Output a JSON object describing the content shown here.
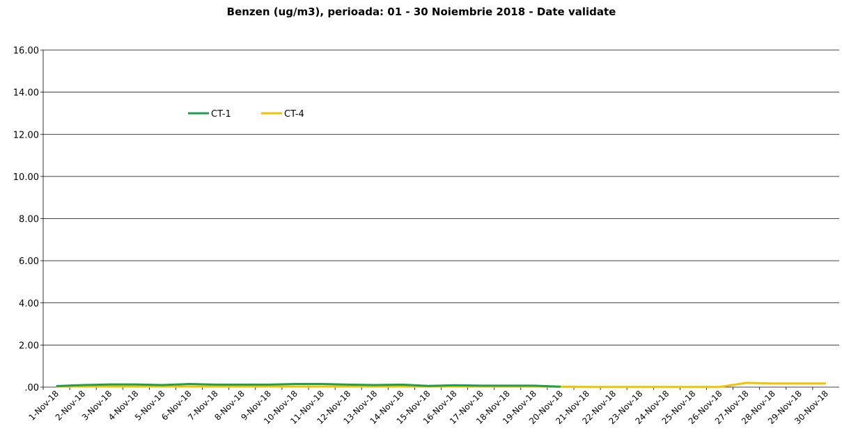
{
  "chart_data": {
    "type": "line",
    "title": "Benzen (ug/m3), perioada: 01 - 30 Noiembrie 2018 - Date validate",
    "categories": [
      "1-Nov-18",
      "2-Nov-18",
      "3-Nov-18",
      "4-Nov-18",
      "5-Nov-18",
      "6-Nov-18",
      "7-Nov-18",
      "8-Nov-18",
      "9-Nov-18",
      "10-Nov-18",
      "11-Nov-18",
      "12-Nov-18",
      "13-Nov-18",
      "14-Nov-18",
      "15-Nov-18",
      "16-Nov-18",
      "17-Nov-18",
      "18-Nov-18",
      "19-Nov-18",
      "20-Nov-18",
      "21-Nov-18",
      "22-Nov-18",
      "23-Nov-18",
      "24-Nov-18",
      "25-Nov-18",
      "26-Nov-18",
      "27-Nov-18",
      "28-Nov-18",
      "29-Nov-18",
      "30-Nov-18"
    ],
    "series": [
      {
        "name": "CT-1",
        "color": "#1ea04a",
        "values": [
          0.05,
          0.1,
          0.13,
          0.13,
          0.1,
          0.15,
          0.12,
          0.12,
          0.12,
          0.15,
          0.15,
          0.12,
          0.1,
          0.12,
          0.06,
          0.09,
          0.07,
          0.07,
          0.07,
          0.02,
          null,
          null,
          null,
          null,
          null,
          null,
          null,
          null,
          null,
          null
        ]
      },
      {
        "name": "CT-4",
        "color": "#f2c200",
        "values": [
          0.03,
          0.03,
          0.03,
          0.03,
          0.03,
          0.03,
          0.03,
          0.03,
          0.03,
          0.03,
          0.03,
          0.03,
          0.03,
          0.03,
          0.03,
          0.03,
          0.03,
          0.03,
          0.03,
          0.02,
          0.01,
          0.01,
          0.01,
          0.01,
          0.01,
          0.01,
          0.2,
          0.17,
          0.17,
          0.17
        ]
      }
    ],
    "ylim": [
      0,
      16
    ],
    "yticks": [
      {
        "value": 0,
        "label": ".00"
      },
      {
        "value": 2,
        "label": "2.00"
      },
      {
        "value": 4,
        "label": "4.00"
      },
      {
        "value": 6,
        "label": "6.00"
      },
      {
        "value": 8,
        "label": "8.00"
      },
      {
        "value": 10,
        "label": "10.00"
      },
      {
        "value": 12,
        "label": "12.00"
      },
      {
        "value": 14,
        "label": "14.00"
      },
      {
        "value": 16,
        "label": "16.00"
      }
    ],
    "grid": true,
    "legend": "upper left"
  }
}
